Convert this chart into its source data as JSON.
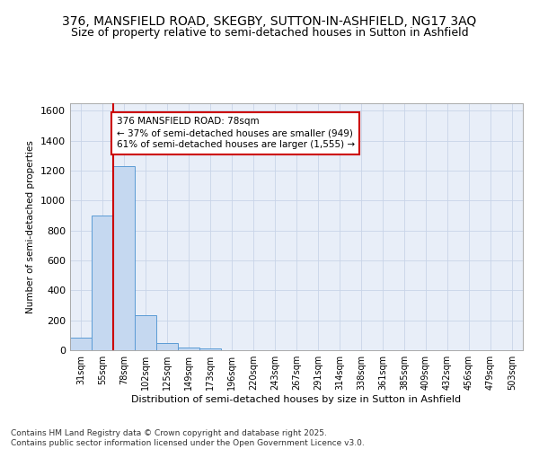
{
  "title1": "376, MANSFIELD ROAD, SKEGBY, SUTTON-IN-ASHFIELD, NG17 3AQ",
  "title2": "Size of property relative to semi-detached houses in Sutton in Ashfield",
  "xlabel": "Distribution of semi-detached houses by size in Sutton in Ashfield",
  "ylabel": "Number of semi-detached properties",
  "categories": [
    "31sqm",
    "55sqm",
    "78sqm",
    "102sqm",
    "125sqm",
    "149sqm",
    "173sqm",
    "196sqm",
    "220sqm",
    "243sqm",
    "267sqm",
    "291sqm",
    "314sqm",
    "338sqm",
    "361sqm",
    "385sqm",
    "409sqm",
    "432sqm",
    "456sqm",
    "479sqm",
    "503sqm"
  ],
  "values": [
    85,
    900,
    1230,
    235,
    50,
    20,
    10,
    0,
    0,
    0,
    0,
    0,
    0,
    0,
    0,
    0,
    0,
    0,
    0,
    0,
    0
  ],
  "bar_color": "#c5d8f0",
  "bar_edge_color": "#5b9bd5",
  "highlight_bar_index": 2,
  "annotation_text": "376 MANSFIELD ROAD: 78sqm\n← 37% of semi-detached houses are smaller (949)\n61% of semi-detached houses are larger (1,555) →",
  "annotation_box_color": "#ffffff",
  "annotation_box_edge_color": "#cc0000",
  "red_line_color": "#cc0000",
  "ylim": [
    0,
    1650
  ],
  "yticks": [
    0,
    200,
    400,
    600,
    800,
    1000,
    1200,
    1400,
    1600
  ],
  "grid_color": "#c8d4e8",
  "bg_color": "#e8eef8",
  "footnote": "Contains HM Land Registry data © Crown copyright and database right 2025.\nContains public sector information licensed under the Open Government Licence v3.0.",
  "title_fontsize": 10,
  "subtitle_fontsize": 9
}
